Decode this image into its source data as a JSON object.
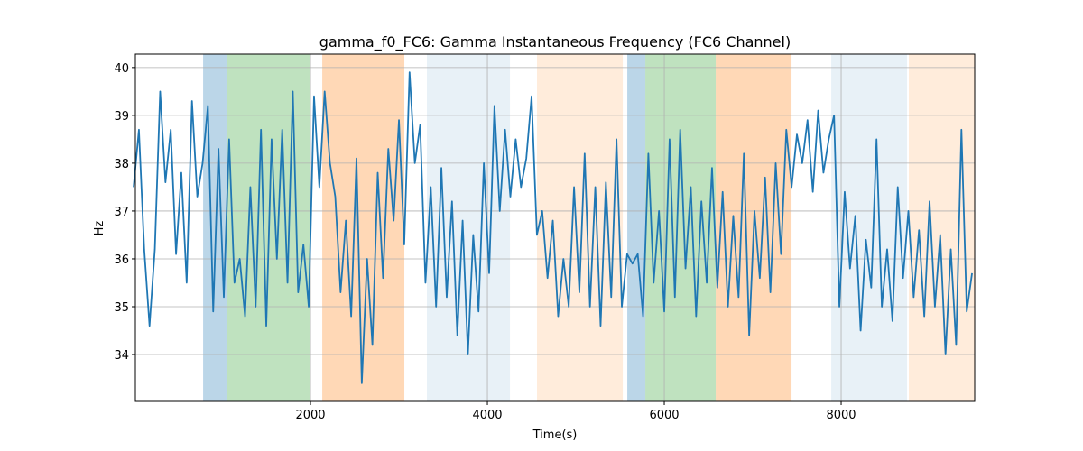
{
  "chart_data": {
    "type": "line",
    "title": "gamma_f0_FC6: Gamma Instantaneous Frequency (FC6 Channel)",
    "xlabel": "Time(s)",
    "ylabel": "Hz",
    "color": "#1f77b4",
    "x": [
      0,
      60,
      120,
      180,
      240,
      300,
      360,
      420,
      480,
      540,
      600,
      660,
      720,
      780,
      840,
      900,
      960,
      1020,
      1080,
      1140,
      1200,
      1260,
      1320,
      1380,
      1440,
      1500,
      1560,
      1620,
      1680,
      1740,
      1800,
      1860,
      1920,
      1980,
      2040,
      2100,
      2160,
      2220,
      2280,
      2340,
      2400,
      2460,
      2520,
      2580,
      2640,
      2700,
      2760,
      2820,
      2880,
      2940,
      3000,
      3060,
      3120,
      3180,
      3240,
      3300,
      3360,
      3420,
      3480,
      3540,
      3600,
      3660,
      3720,
      3780,
      3840,
      3900,
      3960,
      4020,
      4080,
      4140,
      4200,
      4260,
      4320,
      4380,
      4440,
      4500,
      4560,
      4620,
      4680,
      4740,
      4800,
      4860,
      4920,
      4980,
      5040,
      5100,
      5160,
      5220,
      5280,
      5340,
      5400,
      5460,
      5520,
      5580,
      5640,
      5700,
      5760,
      5820,
      5880,
      5940,
      6000,
      6060,
      6120,
      6180,
      6240,
      6300,
      6360,
      6420,
      6480,
      6540,
      6600,
      6660,
      6720,
      6780,
      6840,
      6900,
      6960,
      7020,
      7080,
      7140,
      7200,
      7260,
      7320,
      7380,
      7440,
      7500,
      7560,
      7620,
      7680,
      7740,
      7800,
      7860,
      7920,
      7980,
      8040,
      8100,
      8160,
      8220,
      8280,
      8340,
      8400,
      8460,
      8520,
      8580,
      8640,
      8700,
      8760,
      8820,
      8880,
      8940,
      9000,
      9060,
      9120,
      9180,
      9240,
      9300,
      9360,
      9420,
      9480
    ],
    "values": [
      37.5,
      38.7,
      36.2,
      34.6,
      36.2,
      39.5,
      37.6,
      38.7,
      36.1,
      37.8,
      35.5,
      39.3,
      37.3,
      38.0,
      39.2,
      34.9,
      38.3,
      35.2,
      38.5,
      35.5,
      36.0,
      34.8,
      37.5,
      35.0,
      38.7,
      34.6,
      38.5,
      36.0,
      38.7,
      35.5,
      39.5,
      35.3,
      36.3,
      35.0,
      39.4,
      37.5,
      39.5,
      38.0,
      37.3,
      35.3,
      36.8,
      34.8,
      38.1,
      33.4,
      36.0,
      34.2,
      37.8,
      35.6,
      38.3,
      36.8,
      38.9,
      36.3,
      39.9,
      38.0,
      38.8,
      35.5,
      37.5,
      35.0,
      37.9,
      35.2,
      37.2,
      34.4,
      36.8,
      34.0,
      36.5,
      34.9,
      38.0,
      35.7,
      39.2,
      37.0,
      38.7,
      37.3,
      38.5,
      37.5,
      38.1,
      39.4,
      36.5,
      37.0,
      35.6,
      36.8,
      34.8,
      36.0,
      35.0,
      37.5,
      35.3,
      38.2,
      35.0,
      37.5,
      34.6,
      37.6,
      35.2,
      38.5,
      35.0,
      36.1,
      35.9,
      36.1,
      34.8,
      38.2,
      35.5,
      37.0,
      34.9,
      38.5,
      35.2,
      38.7,
      35.8,
      37.5,
      34.8,
      37.2,
      35.5,
      37.9,
      35.4,
      37.4,
      35.0,
      36.9,
      35.2,
      38.2,
      34.4,
      37.0,
      35.6,
      37.7,
      35.3,
      38.0,
      36.1,
      38.7,
      37.5,
      38.6,
      38.0,
      38.9,
      37.4,
      39.1,
      37.8,
      38.5,
      39.0,
      35.0,
      37.4,
      35.8,
      36.9,
      34.5,
      36.4,
      35.4,
      38.5,
      35.0,
      36.2,
      34.7,
      37.5,
      35.6,
      37.0,
      35.2,
      36.6,
      34.8,
      37.2,
      35.0,
      36.5,
      34.0,
      36.2,
      34.2,
      38.7,
      34.9,
      35.7
    ],
    "spans": [
      {
        "start": 786,
        "end": 1051,
        "color": "#1f77b4",
        "alpha": 0.3
      },
      {
        "start": 1051,
        "end": 2000,
        "color": "#2ca02c",
        "alpha": 0.3
      },
      {
        "start": 2133,
        "end": 3061,
        "color": "#ff7f0e",
        "alpha": 0.3
      },
      {
        "start": 3316,
        "end": 4255,
        "color": "#1f77b4",
        "alpha": 0.1
      },
      {
        "start": 4561,
        "end": 5531,
        "color": "#ff7f0e",
        "alpha": 0.15
      },
      {
        "start": 5582,
        "end": 5786,
        "color": "#1f77b4",
        "alpha": 0.3
      },
      {
        "start": 5786,
        "end": 6582,
        "color": "#2ca02c",
        "alpha": 0.3
      },
      {
        "start": 6582,
        "end": 7439,
        "color": "#ff7f0e",
        "alpha": 0.3
      },
      {
        "start": 7888,
        "end": 8745,
        "color": "#1f77b4",
        "alpha": 0.1
      },
      {
        "start": 8765,
        "end": 9510,
        "color": "#ff7f0e",
        "alpha": 0.15
      }
    ],
    "xlim": [
      20,
      9510
    ],
    "ylim": [
      33.02,
      40.28
    ],
    "xticks": [
      2000,
      4000,
      6000,
      8000
    ],
    "yticks": [
      34,
      35,
      36,
      37,
      38,
      39,
      40
    ],
    "grid": true
  }
}
